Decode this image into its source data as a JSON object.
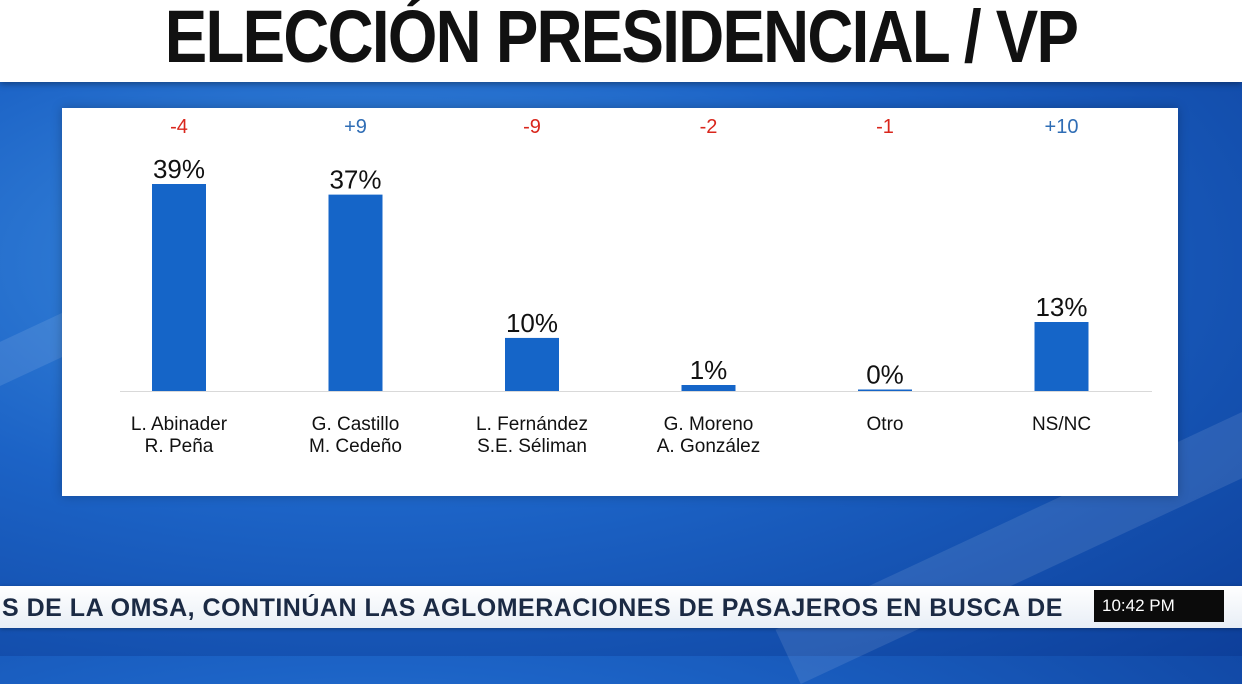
{
  "header": {
    "title": "ELECCIÓN PRESIDENCIAL / VP"
  },
  "chart_data": {
    "type": "bar",
    "categories": [
      [
        "L. Abinader",
        "R. Peña"
      ],
      [
        "G. Castillo",
        "M. Cedeño"
      ],
      [
        "L. Fernández",
        "S.E. Séliman"
      ],
      [
        "G. Moreno",
        "A. González"
      ],
      [
        "Otro"
      ],
      [
        "NS/NC"
      ]
    ],
    "values": [
      39,
      37,
      10,
      1,
      0,
      13
    ],
    "value_labels": [
      "39%",
      "37%",
      "10%",
      "1%",
      "0%",
      "13%"
    ],
    "changes": [
      "-4",
      "+9",
      "-9",
      "-2",
      "-1",
      "+10"
    ],
    "ylim": [
      0,
      39
    ],
    "bar_color": "#1565c8",
    "positive_color": "#2f6db5",
    "negative_color": "#d9261c"
  },
  "ticker": {
    "text": "S DE LA OMSA, CONTINÚAN LAS AGLOMERACIONES DE PASAJEROS EN BUSCA DE",
    "time": "10:42 PM"
  }
}
